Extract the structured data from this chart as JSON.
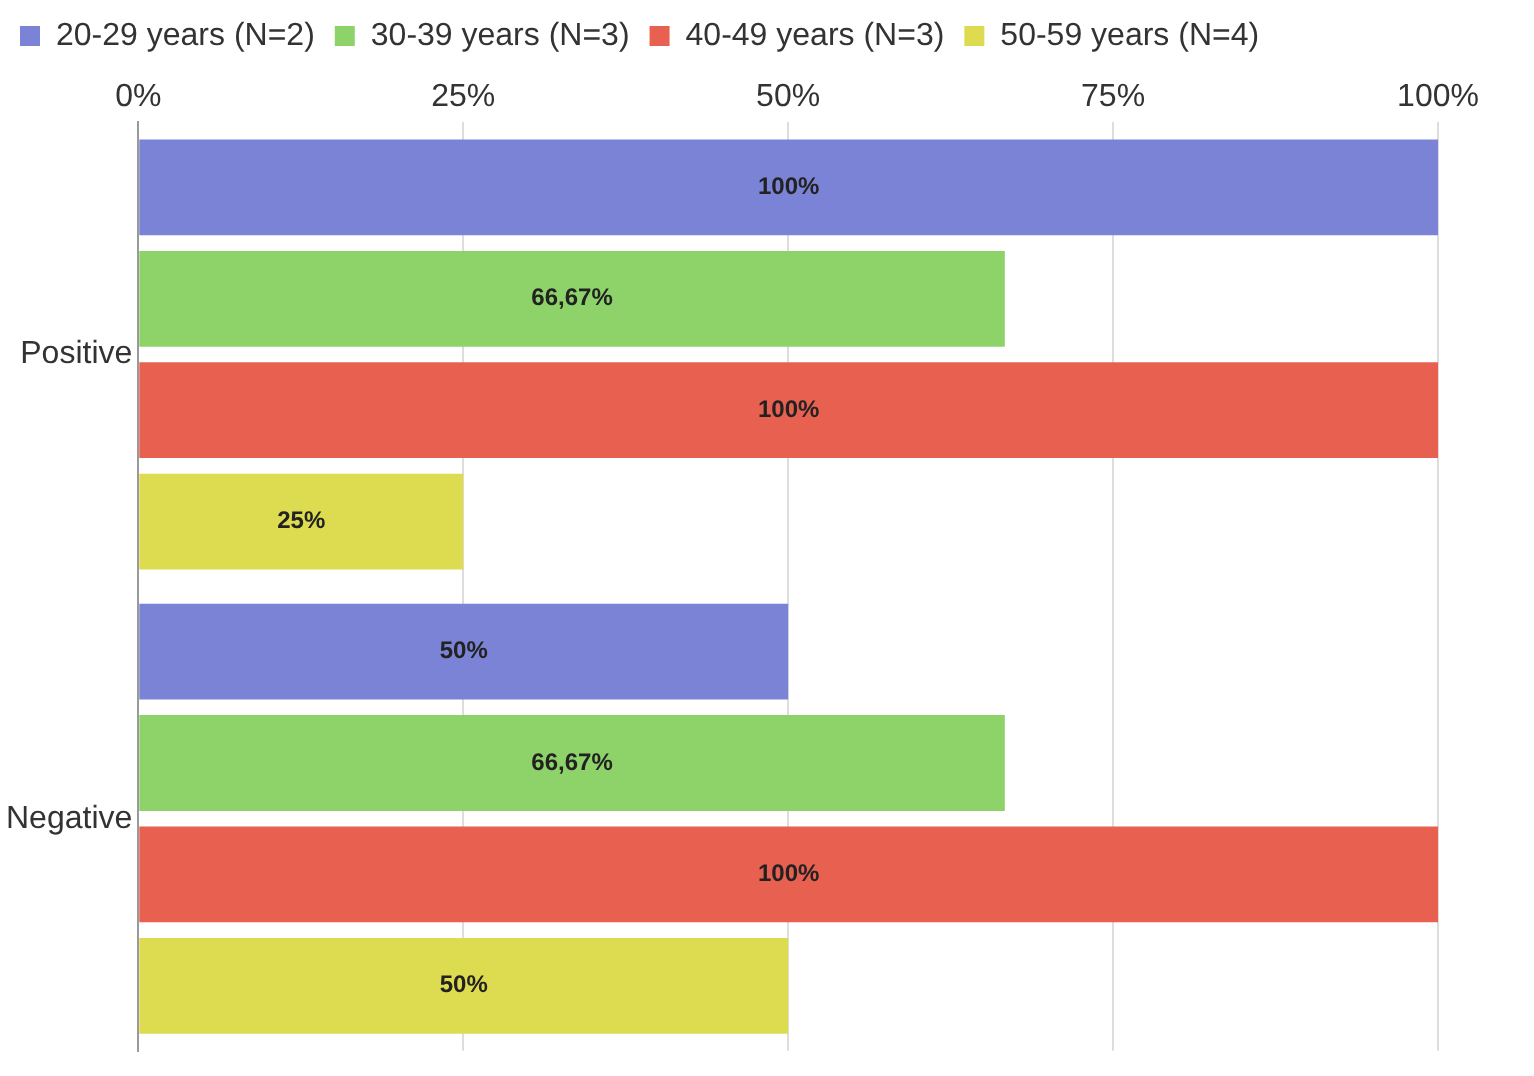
{
  "chart_data": {
    "type": "bar",
    "orientation": "horizontal",
    "categories": [
      "Positive",
      "Negative"
    ],
    "series": [
      {
        "name": "20-29 years (N=2)",
        "color": "#7b83d6",
        "values": [
          100,
          50
        ],
        "value_labels": [
          "100%",
          "50%"
        ]
      },
      {
        "name": "30-39 years (N=3)",
        "color": "#8ed36a",
        "values": [
          66.67,
          66.67
        ],
        "value_labels": [
          "66,67%",
          "66,67%"
        ]
      },
      {
        "name": "40-49 years (N=3)",
        "color": "#e8604f",
        "values": [
          100,
          100
        ],
        "value_labels": [
          "100%",
          "100%"
        ]
      },
      {
        "name": "50-59 years (N=4)",
        "color": "#dddb4f",
        "values": [
          25,
          50
        ],
        "value_labels": [
          "25%",
          "50%"
        ]
      }
    ],
    "xlim": [
      0,
      100
    ],
    "xticks": [
      {
        "value": 0,
        "label": "0%"
      },
      {
        "value": 25,
        "label": "25%"
      },
      {
        "value": 50,
        "label": "50%"
      },
      {
        "value": 75,
        "label": "75%"
      },
      {
        "value": 100,
        "label": "100%"
      }
    ],
    "grid": "x",
    "legend": "top left"
  }
}
